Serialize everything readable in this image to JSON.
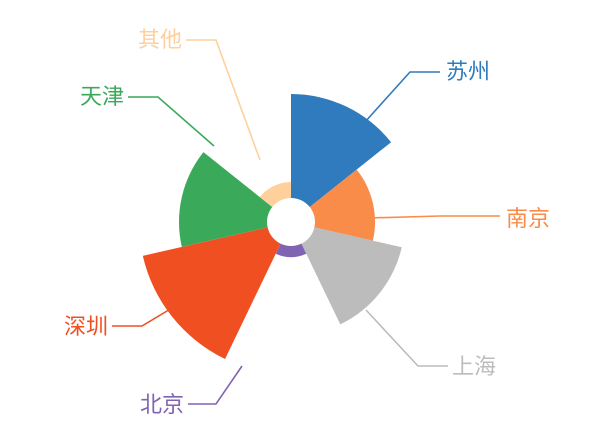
{
  "chart_data": {
    "type": "pie",
    "variant": "rose",
    "inner_radius_ratio": 0.2,
    "slices": [
      {
        "name": "苏州",
        "value": 130,
        "color": "#2f7bbd"
      },
      {
        "name": "南京",
        "value": 75,
        "color": "#fa8c4a"
      },
      {
        "name": "上海",
        "value": 112,
        "color": "#bcbcbc"
      },
      {
        "name": "北京",
        "value": 14,
        "color": "#8064b2"
      },
      {
        "name": "深圳",
        "value": 160,
        "color": "#f04f22"
      },
      {
        "name": "天津",
        "value": 110,
        "color": "#3aa95a"
      },
      {
        "name": "其他",
        "value": 20,
        "color": "#ffd09b"
      }
    ]
  }
}
